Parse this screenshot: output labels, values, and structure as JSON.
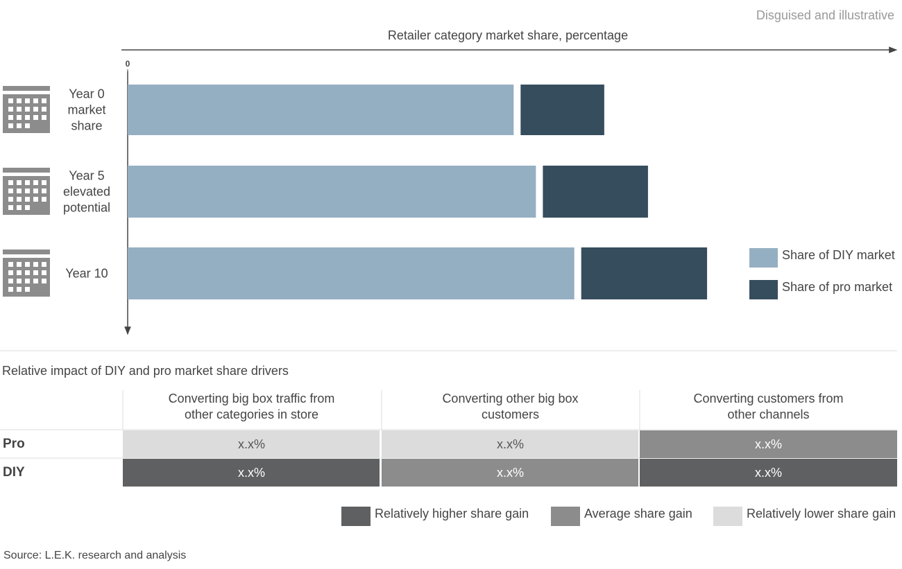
{
  "note": "Disguised and illustrative",
  "chart_data": {
    "type": "bar",
    "orientation": "horizontal",
    "stacked": true,
    "x_label": "Retailer category market share, percentage",
    "categories": [
      "Year 0 market share",
      "Year 5 elevated potential",
      "Year 10"
    ],
    "series": [
      {
        "name": "Share of DIY market",
        "color": "#95afc2",
        "values": [
          50.3,
          53.2,
          58.2
        ]
      },
      {
        "name": "Share of pro market",
        "color": "#364d5d",
        "values": [
          10.9,
          13.7,
          16.4
        ]
      }
    ],
    "xlim": [
      0,
      100
    ],
    "xticks": [
      0
    ]
  },
  "table": {
    "title": "Relative impact of DIY and pro market share drivers",
    "columns": [
      "Converting big box traffic from other categories in store",
      "Converting other big box customers",
      "Converting customers from other channels"
    ],
    "rows": [
      {
        "label": "Pro",
        "cells": [
          {
            "text": "x.x%",
            "color": "#dcdcdc"
          },
          {
            "text": "x.x%",
            "color": "#dcdcdc"
          },
          {
            "text": "x.x%",
            "color": "#8c8c8c"
          }
        ]
      },
      {
        "label": "DIY",
        "cells": [
          {
            "text": "x.x%",
            "color": "#5f6062"
          },
          {
            "text": "x.x%",
            "color": "#8c8c8c"
          },
          {
            "text": "x.x%",
            "color": "#5f6062"
          }
        ]
      }
    ],
    "legend": [
      {
        "label": "Relatively higher share gain",
        "color": "#5f6062"
      },
      {
        "label": "Average share gain",
        "color": "#8c8c8c"
      },
      {
        "label": "Relatively lower share gain",
        "color": "#dcdcdc"
      }
    ]
  },
  "source": "Source: L.E.K. research and analysis"
}
